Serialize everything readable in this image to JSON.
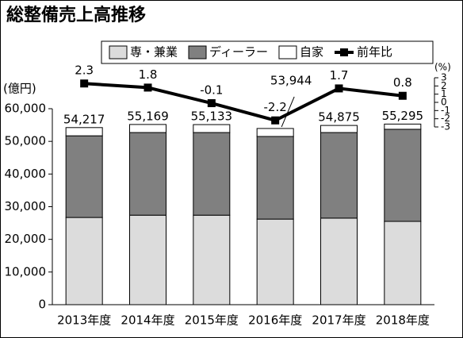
{
  "chart_data": {
    "type": "stacked-bar-line",
    "title": "総整備売上高推移",
    "y_label": "(億円)",
    "y2_label": "(%)",
    "categories": [
      "2013年度",
      "2014年度",
      "2015年度",
      "2016年度",
      "2017年度",
      "2018年度"
    ],
    "series": [
      {
        "name": "専・兼業",
        "color": "#dcdcdc",
        "values": [
          26700,
          27400,
          27400,
          26200,
          26500,
          25500
        ]
      },
      {
        "name": "ディーラー",
        "color": "#808080",
        "values": [
          25000,
          25300,
          25300,
          25300,
          26200,
          28200
        ]
      },
      {
        "name": "自家",
        "color": "#ffffff",
        "values": [
          2517,
          2469,
          2433,
          2444,
          2175,
          1595
        ]
      },
      {
        "name": "前年比",
        "color": "#000000",
        "axis": "y2",
        "values": [
          2.3,
          1.8,
          -0.1,
          -2.2,
          1.7,
          0.8
        ]
      }
    ],
    "totals": {
      "values": [
        54217,
        55169,
        55133,
        53944,
        54875,
        55295
      ],
      "value_labels": [
        "54,217",
        "55,169",
        "55,133",
        "53,944",
        "54,875",
        "55,295"
      ]
    },
    "ylim": [
      0,
      60000
    ],
    "yticks": [
      0,
      {
        "value": 10000,
        "label": "10,000"
      },
      {
        "value": 20000,
        "label": "20,000"
      },
      {
        "value": 30000,
        "label": "30,000"
      },
      {
        "value": 40000,
        "label": "40,000"
      },
      {
        "value": 50000,
        "label": "50,000"
      },
      {
        "value": 60000,
        "label": "60,000"
      }
    ],
    "y2lim": [
      -3,
      3
    ],
    "y2ticks": [
      3,
      2,
      1,
      0,
      -1,
      -2,
      -3
    ],
    "legend": "top"
  }
}
